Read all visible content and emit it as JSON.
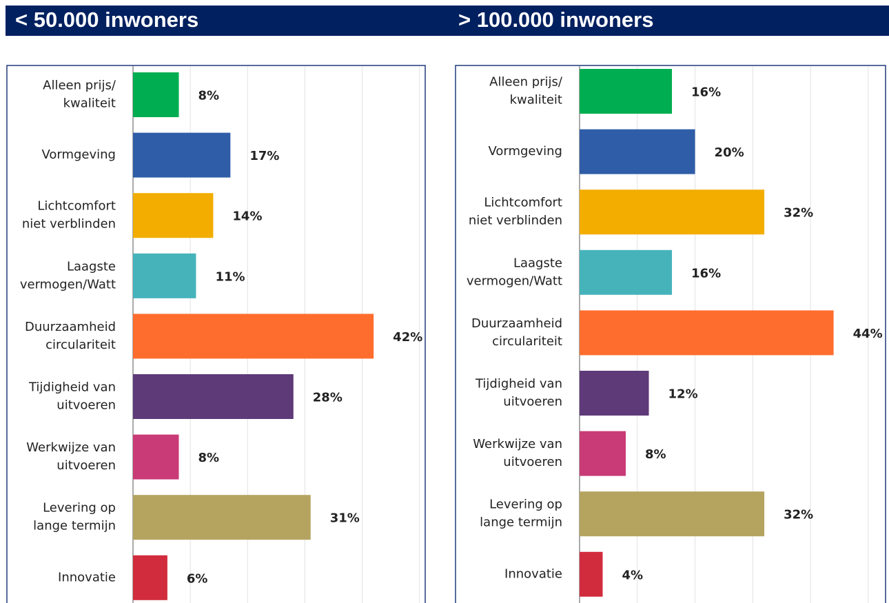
{
  "chart_data": [
    {
      "type": "barh",
      "title": "< 50.000 inwoners",
      "categories": [
        [
          "Alleen prijs/",
          "kwaliteit"
        ],
        [
          "Vormgeving"
        ],
        [
          "Lichtcomfort",
          "niet verblinden"
        ],
        [
          "Laagste",
          "vermogen/Watt"
        ],
        [
          "Duurzaamheid",
          "circulariteit"
        ],
        [
          "Tijdigheid van",
          "uitvoeren"
        ],
        [
          "Werkwijze van",
          "uitvoeren"
        ],
        [
          "Levering op",
          "lange termijn"
        ],
        [
          "Innovatie"
        ]
      ],
      "values": [
        8,
        17,
        14,
        11,
        42,
        28,
        8,
        31,
        6
      ],
      "value_labels": [
        "8%",
        "17%",
        "14%",
        "11%",
        "42%",
        "28%",
        "8%",
        "31%",
        "6%"
      ],
      "colors": [
        "#00ad50",
        "#2f5da8",
        "#f2ad00",
        "#46b3bb",
        "#ff6d2e",
        "#5e3a79",
        "#c93b77",
        "#b5a45f",
        "#d12c3d"
      ],
      "xlim": [
        0,
        51
      ],
      "xticks": [
        0,
        10,
        20,
        30,
        40,
        50
      ],
      "grid": true
    },
    {
      "type": "barh",
      "title": "> 100.000 inwoners",
      "categories": [
        [
          "Alleen prijs/",
          "kwaliteit"
        ],
        [
          "Vormgeving"
        ],
        [
          "Lichtcomfort",
          "niet verblinden"
        ],
        [
          "Laagste",
          "vermogen/Watt"
        ],
        [
          "Duurzaamheid",
          "circulariteit"
        ],
        [
          "Tijdigheid van",
          "uitvoeren"
        ],
        [
          "Werkwijze van",
          "uitvoeren"
        ],
        [
          "Levering op",
          "lange termijn"
        ],
        [
          "Innovatie"
        ]
      ],
      "values": [
        16,
        20,
        32,
        16,
        44,
        12,
        8,
        32,
        4
      ],
      "value_labels": [
        "16%",
        "20%",
        "32%",
        "16%",
        "44%",
        "12%",
        "8%",
        "32%",
        "4%"
      ],
      "colors": [
        "#00ad50",
        "#2f5da8",
        "#f2ad00",
        "#46b3bb",
        "#ff6d2e",
        "#5e3a79",
        "#c93b77",
        "#b5a45f",
        "#d12c3d"
      ],
      "xlim": [
        0,
        53
      ],
      "xticks": [
        0,
        10,
        20,
        30,
        40,
        50
      ],
      "grid": true
    }
  ]
}
